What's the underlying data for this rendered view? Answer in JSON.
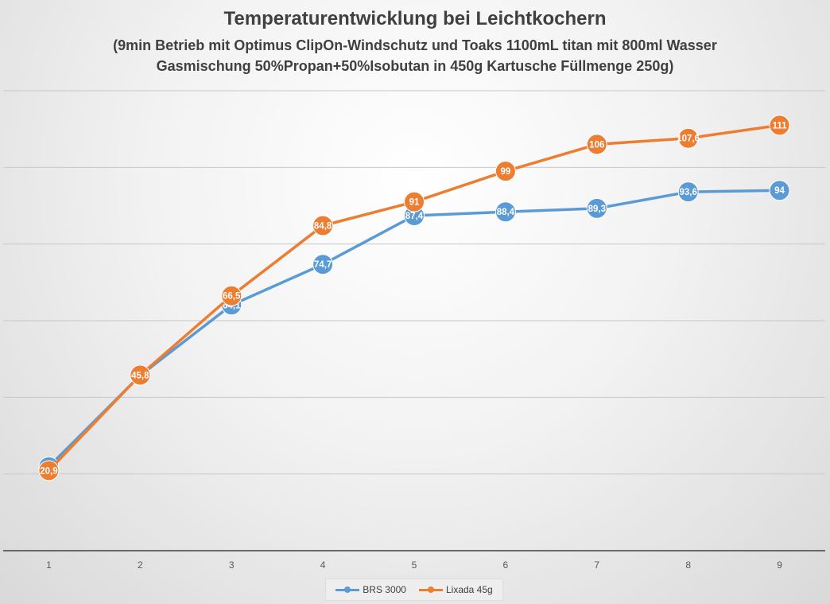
{
  "chart_data": {
    "type": "line",
    "title": "Temperaturentwicklung bei Leichtkochern",
    "subtitle_lines": [
      "(9min Betrieb mit Optimus ClipOn-Windschutz und Toaks 1100mL titan mit 800ml Wasser",
      "Gasmischung 50%Propan+50%Isobutan in 450g Kartusche Füllmenge 250g)"
    ],
    "categories": [
      "1",
      "2",
      "3",
      "4",
      "5",
      "6",
      "7",
      "8",
      "9"
    ],
    "series": [
      {
        "name": "BRS 3000",
        "color": "#5b9bd5",
        "values": [
          21.9,
          45.7,
          64.1,
          74.7,
          87.4,
          88.4,
          89.3,
          93.6,
          94
        ],
        "labels": [
          "21,9",
          "45,7",
          "64,1",
          "74,7",
          "87,4",
          "88,4",
          "89,3",
          "93,6",
          "94"
        ]
      },
      {
        "name": "Lixada 45g",
        "color": "#ed7d31",
        "values": [
          20.9,
          45.8,
          66.5,
          84.8,
          91,
          99,
          106,
          107.6,
          111
        ],
        "labels": [
          "20,9",
          "45,8",
          "66,5",
          "84,8",
          "91",
          "99",
          "106",
          "107,6",
          "111"
        ]
      }
    ],
    "ylim": [
      0,
      120
    ],
    "y_gridlines": [
      20,
      40,
      60,
      80,
      100,
      120
    ],
    "y_tick_labels_visible": false,
    "grid": true,
    "legend_position": "bottom"
  }
}
